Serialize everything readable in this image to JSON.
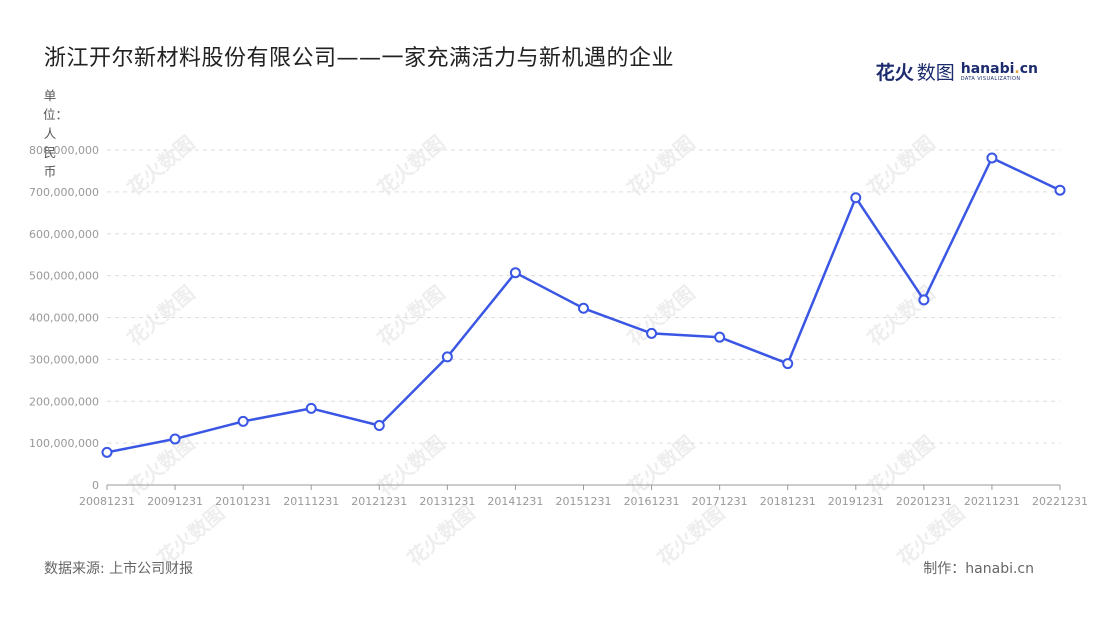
{
  "title": "浙江开尔新材料股份有限公司——一家充满活力与新机遇的企业",
  "logo": {
    "cn_bold": "花火",
    "cn_light": "数图",
    "en": "hanabi",
    "en_accent": ".",
    "en_tail": "cn",
    "en_sub": "DATA VISUALIZATION"
  },
  "unit_label": "单位：人民币",
  "footer": {
    "source": "数据来源: 上市公司财报",
    "credit": "制作：hanabi.cn"
  },
  "watermark": "花火数图",
  "colors": {
    "line": "#3a56e4",
    "grid": "#dddddd",
    "axis": "#999999",
    "tick_text": "#999999"
  },
  "chart_data": {
    "type": "line",
    "title": "浙江开尔新材料股份有限公司——一家充满活力与新机遇的企业",
    "ylabel": "单位：人民币",
    "xlabel": "",
    "categories": [
      "20081231",
      "20091231",
      "20101231",
      "20111231",
      "20121231",
      "20131231",
      "20141231",
      "20151231",
      "20161231",
      "20171231",
      "20181231",
      "20191231",
      "20201231",
      "20211231",
      "20221231"
    ],
    "series": [
      {
        "values": [
          78000000,
          110000000,
          152000000,
          183000000,
          142000000,
          306000000,
          507000000,
          422000000,
          362000000,
          353000000,
          290000000,
          686000000,
          442000000,
          781000000,
          704000000
        ]
      }
    ],
    "ylim": [
      0,
      800000000
    ],
    "yticks": [
      0,
      100000000,
      200000000,
      300000000,
      400000000,
      500000000,
      600000000,
      700000000,
      800000000
    ],
    "ytick_labels": [
      "0",
      "100,000,000",
      "200,000,000",
      "300,000,000",
      "400,000,000",
      "500,000,000",
      "600,000,000",
      "700,000,000",
      "800,000,000"
    ],
    "grid": true,
    "markers": "hollow-circle"
  }
}
